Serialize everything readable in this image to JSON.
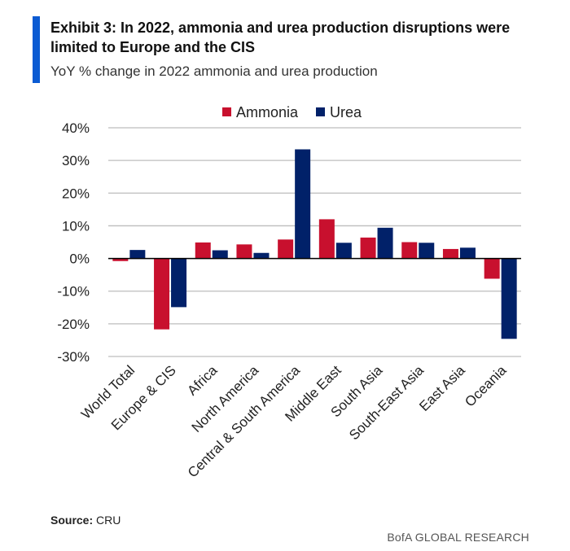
{
  "header": {
    "title": "Exhibit 3: In 2022, ammonia and urea production disruptions were limited to Europe and the CIS",
    "subtitle": "YoY % change in 2022 ammonia and urea production"
  },
  "footer": {
    "source_label": "Source:",
    "source": "CRU",
    "brand": "BofA GLOBAL RESEARCH"
  },
  "chart_data": {
    "type": "bar",
    "categories": [
      "World Total",
      "Europe & CIS",
      "Africa",
      "North America",
      "Central & South America",
      "Middle East",
      "South Asia",
      "South-East Asia",
      "East Asia",
      "Oceania"
    ],
    "series": [
      {
        "name": "Ammonia",
        "color": "#c8102e",
        "values": [
          -0.8,
          -21.7,
          4.9,
          4.3,
          5.8,
          12.0,
          6.4,
          5.0,
          2.9,
          -6.2
        ]
      },
      {
        "name": "Urea",
        "color": "#012169",
        "values": [
          2.6,
          -14.9,
          2.5,
          1.7,
          33.4,
          4.8,
          9.4,
          4.8,
          3.3,
          -24.6
        ]
      }
    ],
    "ylim": [
      -30,
      40
    ],
    "yticks": [
      40,
      30,
      20,
      10,
      0,
      -10,
      -20,
      -30
    ],
    "ytick_labels": [
      "40%",
      "30%",
      "20%",
      "10%",
      "0%",
      "-10%",
      "-20%",
      "-30%"
    ],
    "grid": true,
    "legend": "top"
  }
}
